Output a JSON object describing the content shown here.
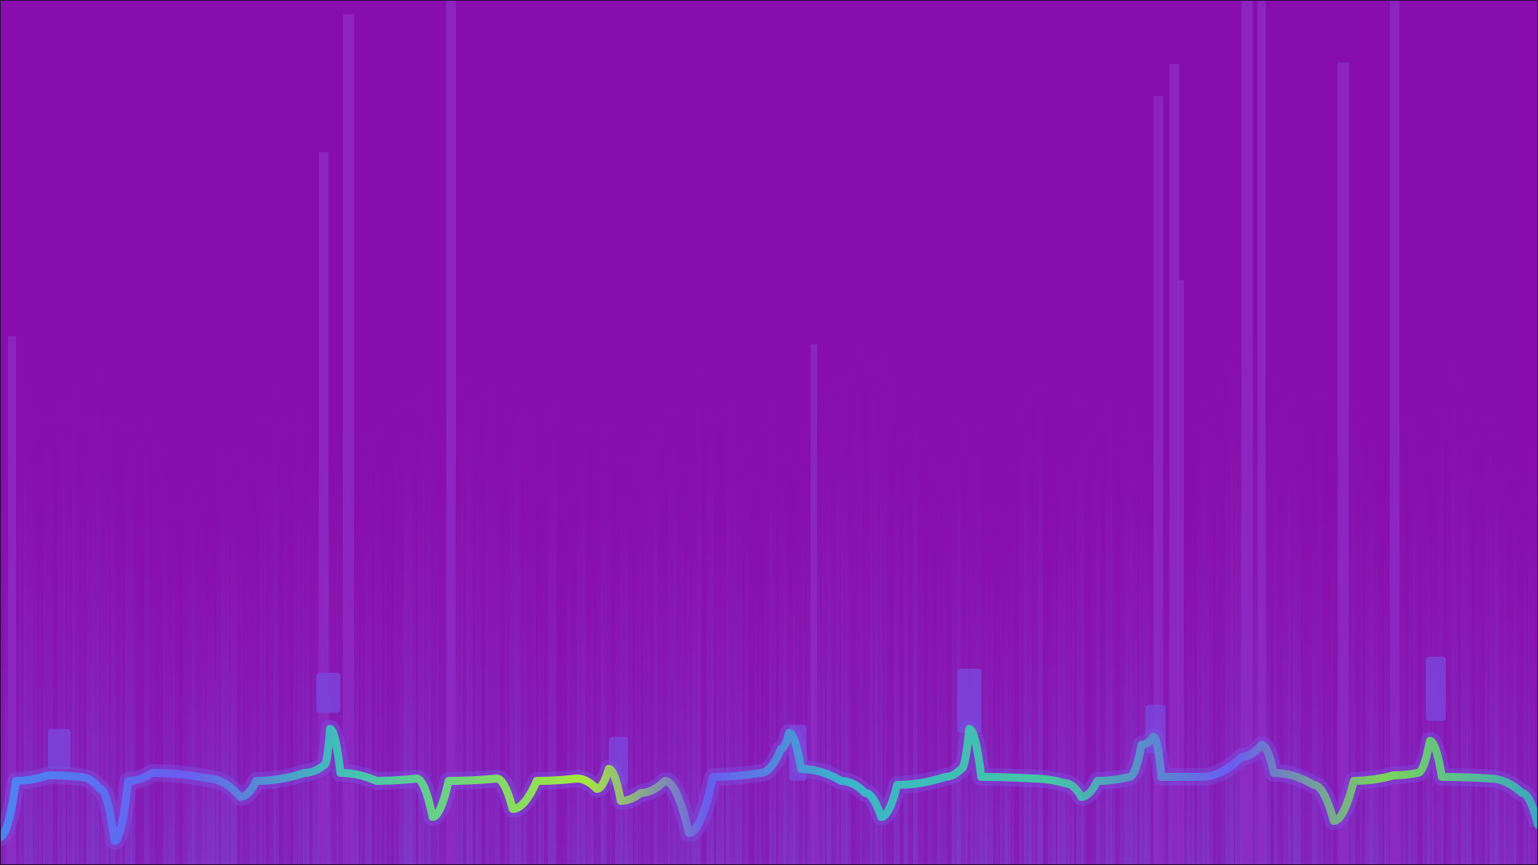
{
  "visualization": {
    "kind": "spectrogram-with-waveform",
    "colormap": "plasma-like",
    "colors": {
      "background": "#870ead",
      "column_base": "#8f1ab6",
      "column_high": "#7d3ec9",
      "tall_line": "#8b2cc4",
      "waveform_low": "#6a5cf0",
      "waveform_mid": "#39b5c9",
      "waveform_high": "#a5e83c",
      "frame": "#2a0a3a"
    }
  }
}
